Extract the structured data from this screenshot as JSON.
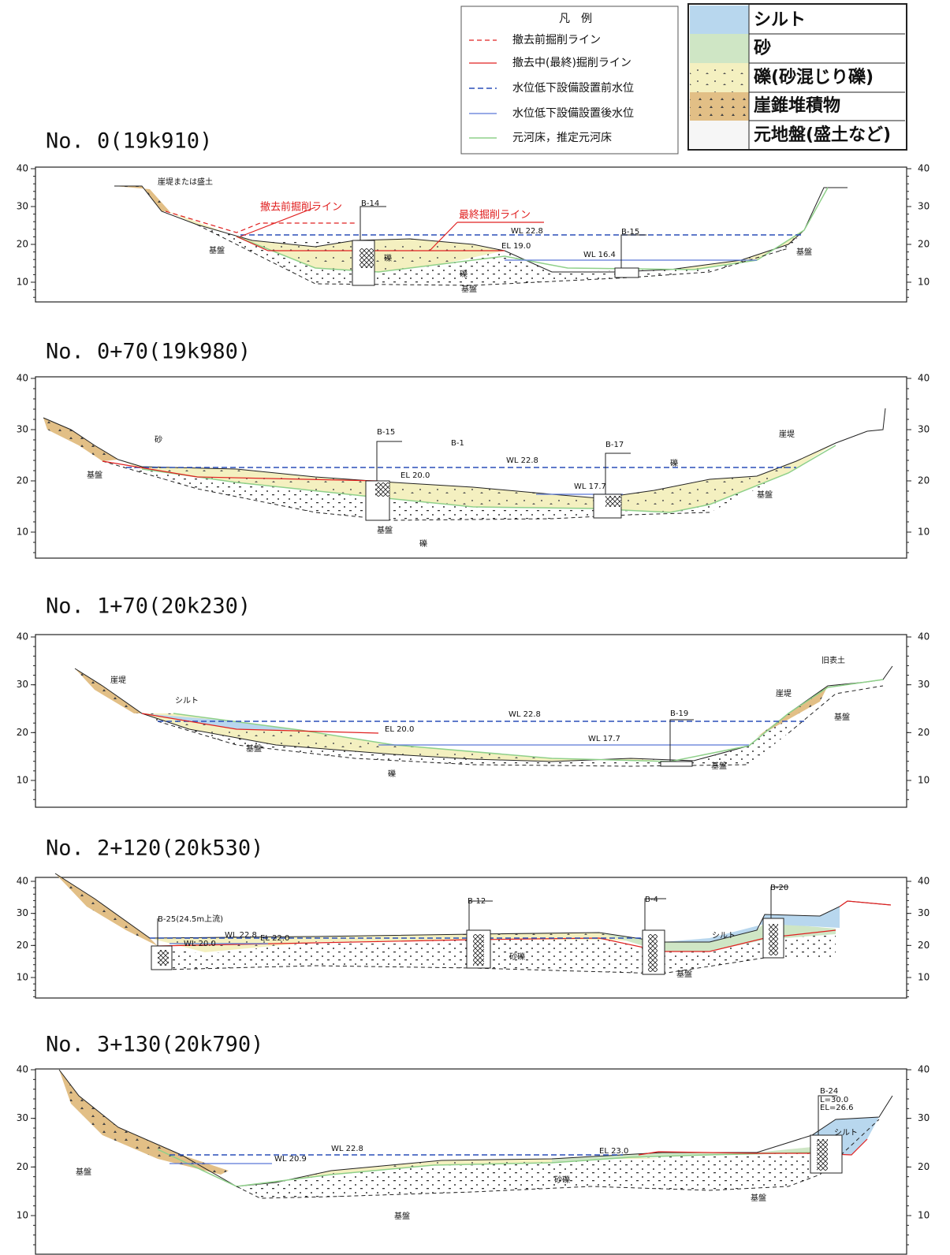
{
  "legend": {
    "title": "凡　例",
    "items": [
      "撤去前掘削ライン",
      "撤去中(最終)掘削ライン",
      "水位低下設備設置前水位",
      "水位低下設備設置後水位",
      "元河床，推定元河床"
    ]
  },
  "soil_legend": {
    "items": [
      "シルト",
      "砂",
      "礫(砂混じり礫)",
      "崖錐堆積物",
      "元地盤(盛土など)"
    ]
  },
  "sections": [
    {
      "title": "No. 0(19k910)",
      "yticks": [
        40,
        30,
        20,
        10
      ],
      "annotations": [
        "崖堤または盛土",
        "撤去前掘削ライン",
        "B-14",
        "最終掘削ライン",
        "WL 22.8",
        "EL 19.0",
        "WL 16.4",
        "B-15",
        "基盤",
        "礫",
        "礫",
        "基盤",
        "基盤"
      ]
    },
    {
      "title": "No. 0+70(19k980)",
      "yticks": [
        40,
        30,
        20,
        10
      ],
      "annotations": [
        "砂",
        "B-15",
        "B-1",
        "WL 22.8",
        "B-17",
        "礫",
        "崖堤",
        "基盤",
        "EL 20.0",
        "WL 17.7",
        "基盤",
        "基盤",
        "礫"
      ]
    },
    {
      "title": "No. 1+70(20k230)",
      "yticks": [
        40,
        30,
        20,
        10
      ],
      "annotations": [
        "崖堤",
        "シルト",
        "WL 22.8",
        "B-19",
        "EL 20.0",
        "WL 17.7",
        "基盤",
        "基盤",
        "礫",
        "崖堤",
        "旧表土",
        "基盤"
      ]
    },
    {
      "title": "No. 2+120(20k530)",
      "yticks": [
        40,
        30,
        20,
        10
      ],
      "annotations": [
        "B-25(24.5m上流)",
        "WL 22.8",
        "EL 22.0",
        "WL 20.0",
        "B-12",
        "B-4",
        "シルト",
        "B-20",
        "砂礫",
        "基盤"
      ]
    },
    {
      "title": "No. 3+130(20k790)",
      "yticks": [
        40,
        30,
        20,
        10
      ],
      "annotations": [
        "B-24",
        "L=30.0",
        "EL=26.6",
        "シルト",
        "WL 22.8",
        "EL 23.0",
        "WL 20.9",
        "砂礫",
        "基盤",
        "基盤",
        "基盤"
      ]
    }
  ]
}
